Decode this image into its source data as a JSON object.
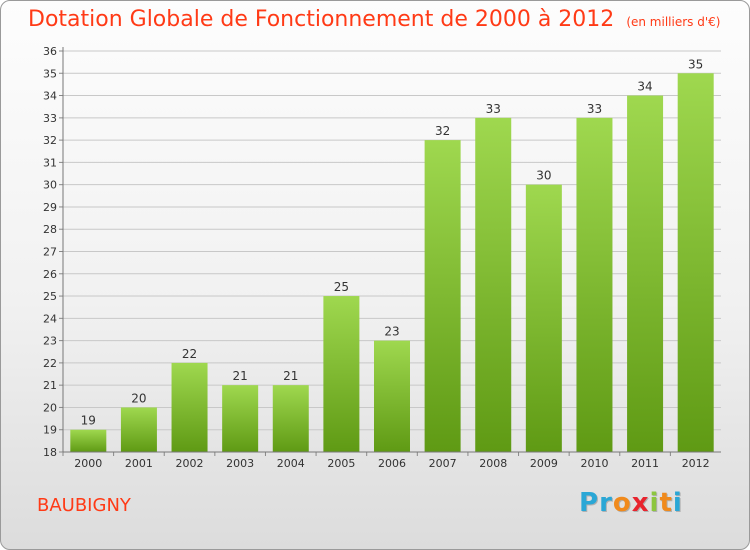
{
  "title": "Dotation Globale de Fonctionnement de 2000 à 2012",
  "unit_note": "(en milliers d'€)",
  "commune": "BAUBIGNY",
  "logo": {
    "text": "Proxiti",
    "colors": [
      "#2aa7d6",
      "#2aa7d6",
      "#f08a1c",
      "#e8242e",
      "#8dc63f",
      "#f08a1c",
      "#2aa7d6"
    ]
  },
  "colors": {
    "title": "#ff3a16",
    "bar_top": "#9fd84f",
    "bar_bottom": "#5f9a14",
    "grid": "#c8c8c8"
  },
  "chart_data": {
    "type": "bar",
    "categories": [
      "2000",
      "2001",
      "2002",
      "2003",
      "2004",
      "2005",
      "2006",
      "2007",
      "2008",
      "2009",
      "2010",
      "2011",
      "2012"
    ],
    "values": [
      19,
      20,
      22,
      21,
      21,
      25,
      23,
      32,
      33,
      30,
      33,
      34,
      35
    ],
    "ylim": [
      18,
      36
    ],
    "yticks": [
      18,
      19,
      20,
      21,
      22,
      23,
      24,
      25,
      26,
      27,
      28,
      29,
      30,
      31,
      32,
      33,
      34,
      35,
      36
    ],
    "grid": true,
    "data_labels": true
  }
}
